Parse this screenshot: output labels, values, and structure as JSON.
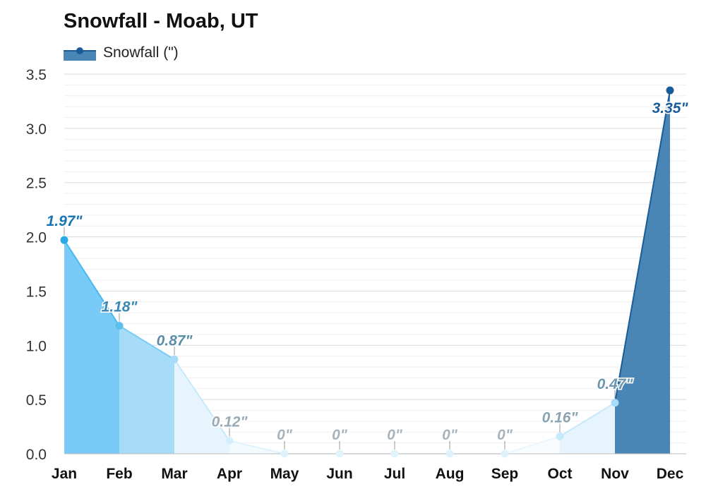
{
  "chart_data": {
    "type": "area",
    "title": "Snowfall - Moab, UT",
    "legend": {
      "label": "Snowfall (\")",
      "placement": "top-left"
    },
    "categories": [
      "Jan",
      "Feb",
      "Mar",
      "Apr",
      "May",
      "Jun",
      "Jul",
      "Aug",
      "Sep",
      "Oct",
      "Nov",
      "Dec"
    ],
    "values": [
      1.97,
      1.18,
      0.87,
      0.12,
      0,
      0,
      0,
      0,
      0,
      0.16,
      0.47,
      3.35
    ],
    "data_labels": [
      "1.97\"",
      "1.18\"",
      "0.87\"",
      "0.12\"",
      "0\"",
      "0\"",
      "0\"",
      "0\"",
      "0\"",
      "0.16\"",
      "0.47\"",
      "3.35\""
    ],
    "y_ticks": [
      "0.0",
      "0.5",
      "1.0",
      "1.5",
      "2.0",
      "2.5",
      "3.0",
      "3.5"
    ],
    "ylim": [
      0,
      3.5
    ],
    "grid": true,
    "colors": {
      "segment_fill": [
        "#78cbf6",
        "#a6dcf8",
        "#e6f5fd",
        "#f3fafe",
        "#f8fcff",
        "#f8fcff",
        "#f8fcff",
        "#f8fcff",
        "#f8fcff",
        "#e6f5fd",
        "#a6dcf8",
        "#4a86b5"
      ],
      "segment_line": [
        "#4ab8ee",
        "#7ccbf2",
        "#c6e9fb",
        "#dff2fd",
        "#e8f6fe",
        "#e8f6fe",
        "#e8f6fe",
        "#e8f6fe",
        "#e8f6fe",
        "#c6e9fb",
        "#4a86b5",
        "#1a5c99"
      ],
      "point": [
        "#2aaae8",
        "#5cbfee",
        "#a6dcf8",
        "#d6effc",
        "#e0f3fd",
        "#e0f3fd",
        "#e0f3fd",
        "#e0f3fd",
        "#e0f3fd",
        "#c6e9fb",
        "#a6dcf8",
        "#1a5c99"
      ],
      "label": [
        "#1a74b0",
        "#3a87b5",
        "#5b8ea8",
        "#9aaab5",
        "#a8b4bd",
        "#a8b4bd",
        "#a8b4bd",
        "#a8b4bd",
        "#a8b4bd",
        "#8aa3b3",
        "#6c97b0",
        "#1a5c99"
      ]
    }
  }
}
